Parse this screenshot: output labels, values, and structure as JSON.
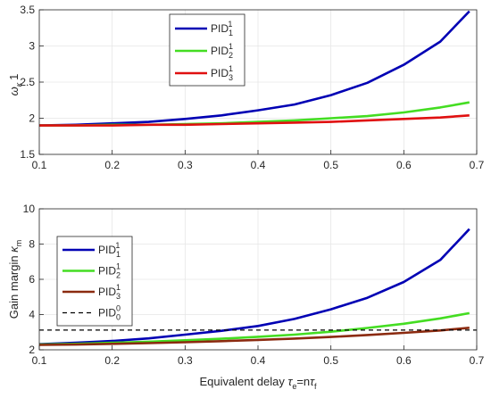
{
  "figure": {
    "xlabel_prefix": "Equivalent delay ",
    "xlabel_tau": "τ",
    "xlabel_e": "e",
    "xlabel_eq": "=n",
    "xlabel_tau2": "τ",
    "xlabel_f": "f"
  },
  "colors": {
    "pid1": "#0000b4",
    "pid2": "#44dd22",
    "pid3_top": "#e01010",
    "pid3_bottom": "#8b2a0f",
    "ref": "#000000",
    "grid": "#e6e6e6",
    "axis": "#262626"
  },
  "chart_data": [
    {
      "type": "line",
      "title": "",
      "xlabel": "",
      "ylabel": "ω κ 1",
      "ylabel_main": "ω",
      "ylabel_sub": "κ",
      "ylabel_suffix": "1",
      "xlim": [
        0.1,
        0.7
      ],
      "ylim": [
        1.5,
        3.5
      ],
      "grid": true,
      "legend_position": "top-center",
      "x_ticks": [
        "0.1",
        "0.2",
        "0.3",
        "0.4",
        "0.5",
        "0.6",
        "0.7"
      ],
      "y_ticks": [
        "1.5",
        "2",
        "2.5",
        "3",
        "3.5"
      ],
      "x": [
        0.1,
        0.15,
        0.2,
        0.25,
        0.3,
        0.35,
        0.4,
        0.45,
        0.5,
        0.55,
        0.6,
        0.65,
        0.69
      ],
      "series": [
        {
          "name": "PID",
          "sub": "1",
          "sup": "1",
          "color_key": "pid1",
          "dashed": false,
          "values": [
            1.9,
            1.91,
            1.93,
            1.95,
            1.99,
            2.04,
            2.11,
            2.19,
            2.32,
            2.49,
            2.74,
            3.06,
            3.48
          ]
        },
        {
          "name": "PID",
          "sub": "2",
          "sup": "1",
          "color_key": "pid2",
          "dashed": false,
          "values": [
            1.9,
            1.9,
            1.91,
            1.91,
            1.92,
            1.93,
            1.95,
            1.97,
            2.0,
            2.03,
            2.08,
            2.15,
            2.22
          ]
        },
        {
          "name": "PID",
          "sub": "3",
          "sup": "1",
          "color_key": "pid3_top",
          "dashed": false,
          "values": [
            1.9,
            1.9,
            1.9,
            1.91,
            1.91,
            1.92,
            1.93,
            1.94,
            1.95,
            1.97,
            1.99,
            2.01,
            2.04
          ]
        }
      ]
    },
    {
      "type": "line",
      "title": "",
      "xlabel": "Equivalent delay τe=nτf",
      "ylabel": "Gain margin κm",
      "ylabel_main": "Gain margin ",
      "ylabel_sub": "m",
      "ylabel_kappa": "κ",
      "xlim": [
        0.1,
        0.7
      ],
      "ylim": [
        2,
        10
      ],
      "grid": true,
      "legend_position": "middle-left",
      "x_ticks": [
        "0.1",
        "0.2",
        "0.3",
        "0.4",
        "0.5",
        "0.6",
        "0.7"
      ],
      "y_ticks": [
        "2",
        "4",
        "6",
        "8",
        "10"
      ],
      "x": [
        0.1,
        0.15,
        0.2,
        0.25,
        0.3,
        0.35,
        0.4,
        0.45,
        0.5,
        0.55,
        0.6,
        0.65,
        0.69
      ],
      "series": [
        {
          "name": "PID",
          "sub": "1",
          "sup": "1",
          "color_key": "pid1",
          "dashed": false,
          "values": [
            2.32,
            2.4,
            2.5,
            2.65,
            2.86,
            3.08,
            3.35,
            3.75,
            4.3,
            4.95,
            5.85,
            7.1,
            8.85
          ]
        },
        {
          "name": "PID",
          "sub": "2",
          "sup": "1",
          "color_key": "pid2",
          "dashed": false,
          "values": [
            2.3,
            2.34,
            2.4,
            2.46,
            2.54,
            2.63,
            2.74,
            2.86,
            3.03,
            3.24,
            3.48,
            3.78,
            4.08
          ]
        },
        {
          "name": "PID",
          "sub": "3",
          "sup": "1",
          "color_key": "pid3_bottom",
          "dashed": false,
          "values": [
            2.28,
            2.3,
            2.34,
            2.38,
            2.43,
            2.49,
            2.56,
            2.64,
            2.73,
            2.84,
            2.96,
            3.1,
            3.25
          ]
        },
        {
          "name": "PID",
          "sub": "0",
          "sup": "0",
          "color_key": "ref",
          "dashed": true,
          "values": [
            3.12,
            3.12,
            3.12,
            3.12,
            3.12,
            3.12,
            3.12,
            3.12,
            3.12,
            3.12,
            3.12,
            3.12,
            3.12
          ]
        }
      ]
    }
  ]
}
